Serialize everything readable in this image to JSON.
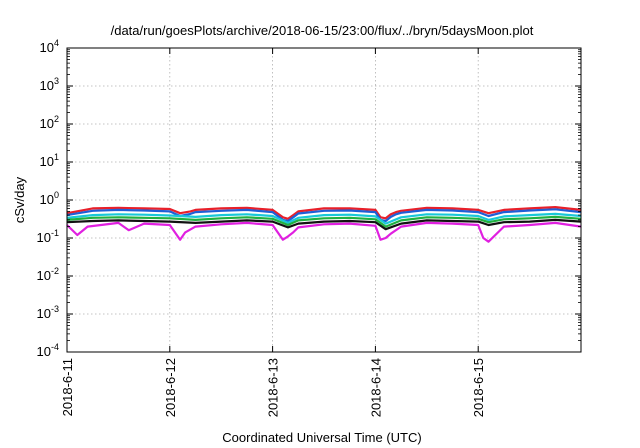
{
  "chart_data": {
    "type": "line",
    "title": "/data/run/goesPlots/archive/2018-06-15/23:00/flux/../bryn/5daysMoon.plot",
    "xlabel": "Coordinated Universal Time (UTC)",
    "ylabel": "cSv/day",
    "x_tick_labels": [
      "2018-6-11",
      "2018-6-12",
      "2018-6-13",
      "2018-6-14",
      "2018-6-15"
    ],
    "xlim_days": [
      0,
      5
    ],
    "y_scale": "log",
    "ylim": [
      0.0001,
      10000
    ],
    "y_tick_exponents": [
      -4,
      -3,
      -2,
      -1,
      0,
      1,
      2,
      3,
      4
    ],
    "y_tick_base": "10",
    "grid": true,
    "series": [
      {
        "color": "#e8202a",
        "x": [
          0,
          0.25,
          0.5,
          0.75,
          1.0,
          1.1,
          1.2,
          1.25,
          1.5,
          1.75,
          2.0,
          2.1,
          2.15,
          2.2,
          2.25,
          2.5,
          2.75,
          3.0,
          3.05,
          3.1,
          3.15,
          3.2,
          3.25,
          3.5,
          3.75,
          4.0,
          4.1,
          4.25,
          4.5,
          4.75,
          5.0
        ],
        "values": [
          0.45,
          0.6,
          0.62,
          0.6,
          0.58,
          0.45,
          0.5,
          0.55,
          0.6,
          0.62,
          0.55,
          0.35,
          0.32,
          0.4,
          0.5,
          0.6,
          0.6,
          0.55,
          0.35,
          0.33,
          0.42,
          0.48,
          0.52,
          0.62,
          0.6,
          0.55,
          0.45,
          0.55,
          0.6,
          0.65,
          0.55
        ]
      },
      {
        "color": "#1f5fd6",
        "x": [
          0,
          0.25,
          0.5,
          0.75,
          1.0,
          1.1,
          1.2,
          1.25,
          1.5,
          1.75,
          2.0,
          2.1,
          2.15,
          2.2,
          2.25,
          2.5,
          2.75,
          3.0,
          3.05,
          3.1,
          3.15,
          3.2,
          3.25,
          3.5,
          3.75,
          4.0,
          4.1,
          4.25,
          4.5,
          4.75,
          5.0
        ],
        "values": [
          0.4,
          0.52,
          0.55,
          0.53,
          0.5,
          0.38,
          0.43,
          0.48,
          0.52,
          0.55,
          0.48,
          0.3,
          0.28,
          0.35,
          0.44,
          0.52,
          0.53,
          0.48,
          0.3,
          0.28,
          0.36,
          0.42,
          0.46,
          0.55,
          0.53,
          0.48,
          0.38,
          0.48,
          0.53,
          0.57,
          0.48
        ]
      },
      {
        "color": "#18c8d8",
        "x": [
          0,
          0.25,
          0.5,
          0.75,
          1.0,
          1.25,
          1.5,
          1.75,
          2.0,
          2.15,
          2.25,
          2.5,
          2.75,
          3.0,
          3.1,
          3.25,
          3.5,
          3.75,
          4.0,
          4.1,
          4.25,
          4.5,
          4.75,
          5.0
        ],
        "values": [
          0.34,
          0.4,
          0.42,
          0.41,
          0.39,
          0.36,
          0.4,
          0.42,
          0.38,
          0.25,
          0.34,
          0.4,
          0.41,
          0.37,
          0.24,
          0.35,
          0.42,
          0.41,
          0.38,
          0.3,
          0.37,
          0.4,
          0.43,
          0.38
        ]
      },
      {
        "color": "#20b040",
        "x": [
          0,
          0.25,
          0.5,
          0.75,
          1.0,
          1.25,
          1.5,
          1.75,
          2.0,
          2.15,
          2.25,
          2.5,
          2.75,
          3.0,
          3.1,
          3.25,
          3.5,
          3.75,
          4.0,
          4.1,
          4.25,
          4.5,
          4.75,
          5.0
        ],
        "values": [
          0.3,
          0.34,
          0.35,
          0.34,
          0.33,
          0.3,
          0.33,
          0.35,
          0.32,
          0.22,
          0.29,
          0.33,
          0.34,
          0.31,
          0.2,
          0.29,
          0.35,
          0.34,
          0.32,
          0.26,
          0.31,
          0.33,
          0.36,
          0.32
        ]
      },
      {
        "color": "#111111",
        "x": [
          0,
          0.25,
          0.5,
          0.75,
          1.0,
          1.25,
          1.5,
          1.75,
          2.0,
          2.15,
          2.25,
          2.5,
          2.75,
          3.0,
          3.1,
          3.25,
          3.5,
          3.75,
          4.0,
          4.1,
          4.25,
          4.5,
          4.75,
          5.0
        ],
        "values": [
          0.26,
          0.28,
          0.29,
          0.28,
          0.27,
          0.25,
          0.27,
          0.29,
          0.27,
          0.19,
          0.24,
          0.27,
          0.28,
          0.26,
          0.17,
          0.24,
          0.29,
          0.28,
          0.27,
          0.22,
          0.26,
          0.27,
          0.3,
          0.27
        ]
      },
      {
        "color": "#e020e0",
        "x": [
          0,
          0.1,
          0.2,
          0.5,
          0.6,
          0.75,
          1.0,
          1.1,
          1.15,
          1.25,
          1.5,
          1.75,
          2.0,
          2.1,
          2.15,
          2.2,
          2.25,
          2.5,
          2.75,
          3.0,
          3.05,
          3.1,
          3.15,
          3.25,
          3.5,
          3.75,
          4.0,
          4.05,
          4.1,
          4.25,
          4.5,
          4.75,
          5.0
        ],
        "values": [
          0.22,
          0.12,
          0.2,
          0.25,
          0.16,
          0.24,
          0.22,
          0.09,
          0.14,
          0.2,
          0.23,
          0.25,
          0.22,
          0.09,
          0.11,
          0.14,
          0.19,
          0.23,
          0.24,
          0.21,
          0.09,
          0.1,
          0.13,
          0.2,
          0.25,
          0.24,
          0.22,
          0.1,
          0.08,
          0.2,
          0.22,
          0.25,
          0.2
        ]
      }
    ]
  }
}
